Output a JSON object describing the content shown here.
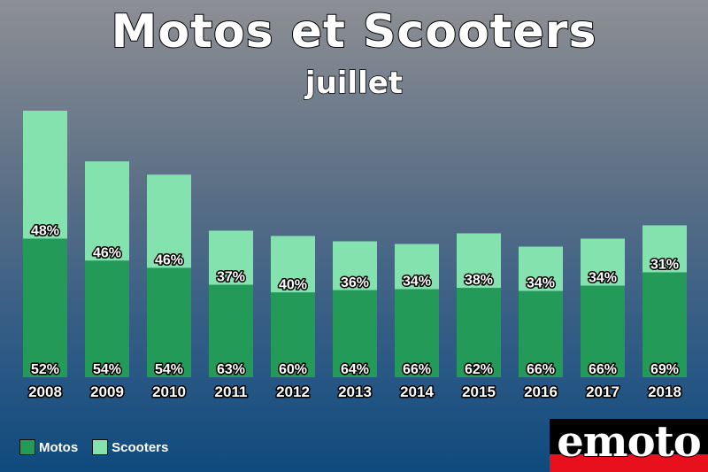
{
  "title": "Motos et Scooters",
  "subtitle": "juillet",
  "brand": "emoto",
  "legend": [
    {
      "label": "Motos",
      "color": "#239a57"
    },
    {
      "label": "Scooters",
      "color": "#84e2ae"
    }
  ],
  "chart_data": {
    "type": "bar",
    "stacked": true,
    "categories": [
      "2008",
      "2009",
      "2010",
      "2011",
      "2012",
      "2013",
      "2014",
      "2015",
      "2016",
      "2017",
      "2018"
    ],
    "totals": [
      100,
      81,
      76,
      55,
      53,
      51,
      50,
      54,
      49,
      52,
      57
    ],
    "series": [
      {
        "name": "Motos",
        "color": "#239a57",
        "percent_labels": [
          "52%",
          "54%",
          "54%",
          "63%",
          "60%",
          "64%",
          "66%",
          "62%",
          "66%",
          "66%",
          "69%"
        ]
      },
      {
        "name": "Scooters",
        "color": "#84e2ae",
        "percent_labels": [
          "48%",
          "46%",
          "46%",
          "37%",
          "40%",
          "36%",
          "34%",
          "38%",
          "34%",
          "34%",
          "31%"
        ]
      }
    ],
    "ylim": [
      0,
      100
    ],
    "grid": false,
    "legend_position": "bottom-left"
  }
}
